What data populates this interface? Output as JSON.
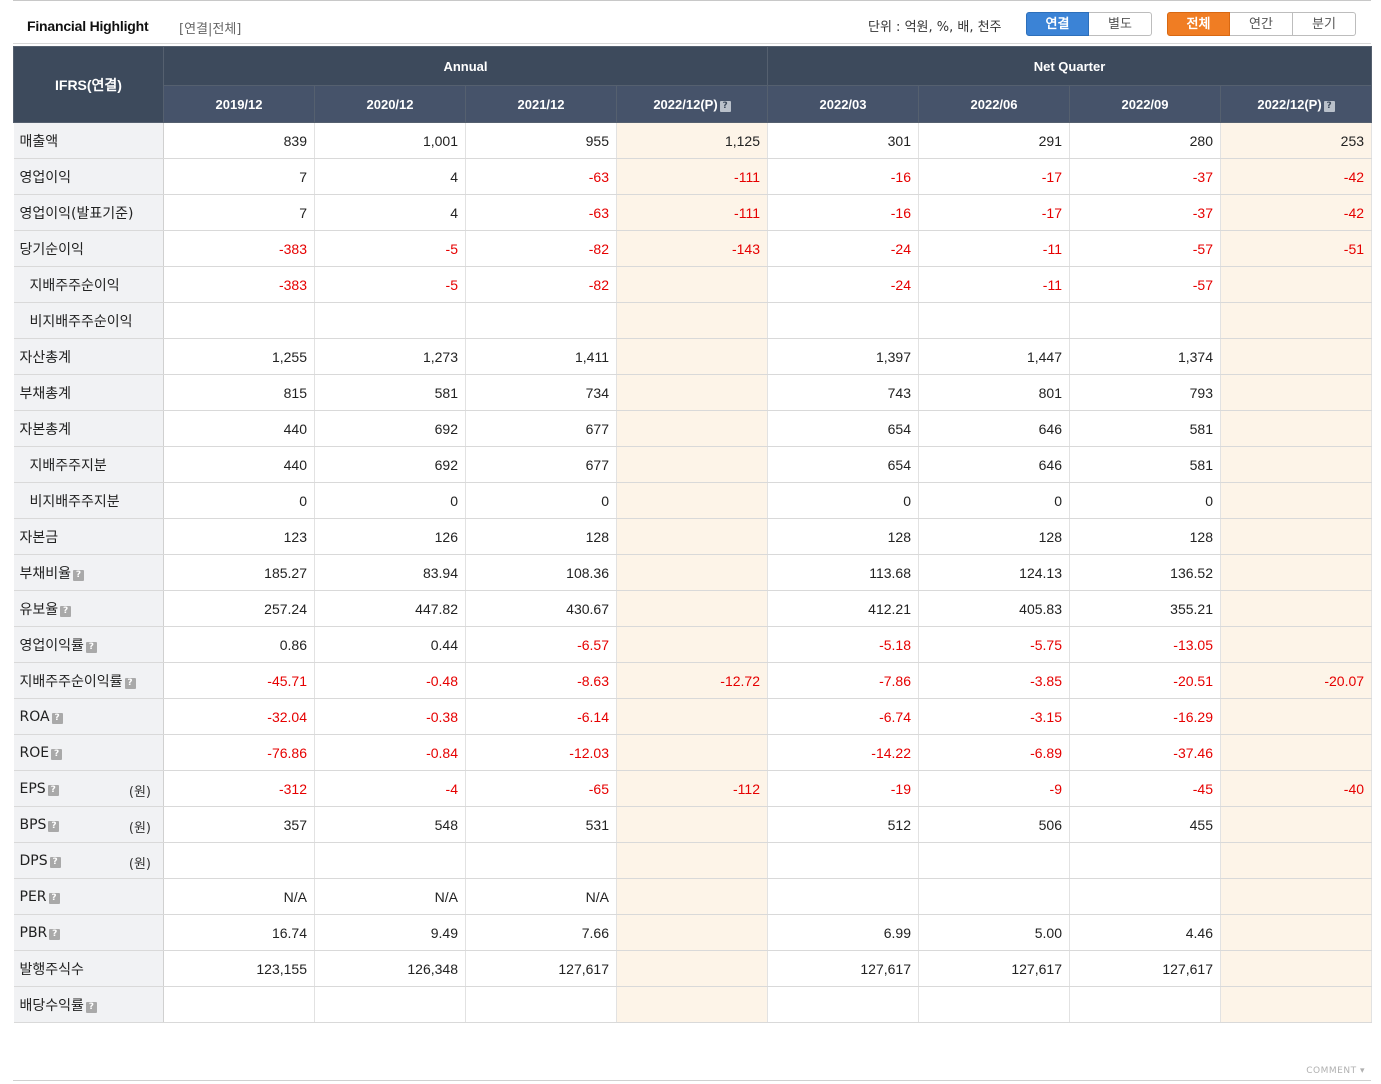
{
  "header": {
    "title": "Financial Highlight",
    "subtitle": "[연결|전체]",
    "unit_label": "단위 : 억원, %, 배, 천주",
    "basis_buttons": [
      {
        "label": "연결",
        "active": true
      },
      {
        "label": "별도",
        "active": false
      }
    ],
    "period_buttons": [
      {
        "label": "전체",
        "active": true
      },
      {
        "label": "연간",
        "active": false
      },
      {
        "label": "분기",
        "active": false
      }
    ]
  },
  "table": {
    "corner": "IFRS(연결)",
    "group_annual": "Annual",
    "group_quarter": "Net Quarter",
    "columns": [
      "2019/12",
      "2020/12",
      "2021/12",
      "2022/12(P)",
      "2022/03",
      "2022/06",
      "2022/09",
      "2022/12(P)"
    ],
    "rows": [
      {
        "label": "매출액",
        "help": false,
        "unit": "",
        "values": [
          "839",
          "1,001",
          "955",
          "1,125",
          "301",
          "291",
          "280",
          "253"
        ]
      },
      {
        "label": "영업이익",
        "help": false,
        "unit": "",
        "values": [
          "7",
          "4",
          "-63",
          "-111",
          "-16",
          "-17",
          "-37",
          "-42"
        ]
      },
      {
        "label": "영업이익(발표기준)",
        "help": false,
        "unit": "",
        "values": [
          "7",
          "4",
          "-63",
          "-111",
          "-16",
          "-17",
          "-37",
          "-42"
        ]
      },
      {
        "label": "당기순이익",
        "help": false,
        "unit": "",
        "values": [
          "-383",
          "-5",
          "-82",
          "-143",
          "-24",
          "-11",
          "-57",
          "-51"
        ]
      },
      {
        "label": "지배주주순이익",
        "help": false,
        "unit": "",
        "indent": true,
        "values": [
          "-383",
          "-5",
          "-82",
          "",
          "-24",
          "-11",
          "-57",
          ""
        ]
      },
      {
        "label": "비지배주주순이익",
        "help": false,
        "unit": "",
        "indent": true,
        "values": [
          "",
          "",
          "",
          "",
          "",
          "",
          "",
          ""
        ]
      },
      {
        "label": "자산총계",
        "help": false,
        "unit": "",
        "values": [
          "1,255",
          "1,273",
          "1,411",
          "",
          "1,397",
          "1,447",
          "1,374",
          ""
        ]
      },
      {
        "label": "부채총계",
        "help": false,
        "unit": "",
        "values": [
          "815",
          "581",
          "734",
          "",
          "743",
          "801",
          "793",
          ""
        ]
      },
      {
        "label": "자본총계",
        "help": false,
        "unit": "",
        "values": [
          "440",
          "692",
          "677",
          "",
          "654",
          "646",
          "581",
          ""
        ]
      },
      {
        "label": "지배주주지분",
        "help": false,
        "unit": "",
        "indent": true,
        "values": [
          "440",
          "692",
          "677",
          "",
          "654",
          "646",
          "581",
          ""
        ]
      },
      {
        "label": "비지배주주지분",
        "help": false,
        "unit": "",
        "indent": true,
        "values": [
          "0",
          "0",
          "0",
          "",
          "0",
          "0",
          "0",
          ""
        ]
      },
      {
        "label": "자본금",
        "help": false,
        "unit": "",
        "values": [
          "123",
          "126",
          "128",
          "",
          "128",
          "128",
          "128",
          ""
        ]
      },
      {
        "label": "부채비율",
        "help": true,
        "unit": "",
        "values": [
          "185.27",
          "83.94",
          "108.36",
          "",
          "113.68",
          "124.13",
          "136.52",
          ""
        ]
      },
      {
        "label": "유보율",
        "help": true,
        "unit": "",
        "values": [
          "257.24",
          "447.82",
          "430.67",
          "",
          "412.21",
          "405.83",
          "355.21",
          ""
        ]
      },
      {
        "label": "영업이익률",
        "help": true,
        "unit": "",
        "values": [
          "0.86",
          "0.44",
          "-6.57",
          "",
          "-5.18",
          "-5.75",
          "-13.05",
          ""
        ]
      },
      {
        "label": "지배주주순이익률",
        "help": true,
        "unit": "",
        "values": [
          "-45.71",
          "-0.48",
          "-8.63",
          "-12.72",
          "-7.86",
          "-3.85",
          "-20.51",
          "-20.07"
        ]
      },
      {
        "label": "ROA",
        "help": true,
        "unit": "",
        "values": [
          "-32.04",
          "-0.38",
          "-6.14",
          "",
          "-6.74",
          "-3.15",
          "-16.29",
          ""
        ]
      },
      {
        "label": "ROE",
        "help": true,
        "unit": "",
        "values": [
          "-76.86",
          "-0.84",
          "-12.03",
          "",
          "-14.22",
          "-6.89",
          "-37.46",
          ""
        ]
      },
      {
        "label": "EPS",
        "help": true,
        "unit": "(원)",
        "values": [
          "-312",
          "-4",
          "-65",
          "-112",
          "-19",
          "-9",
          "-45",
          "-40"
        ]
      },
      {
        "label": "BPS",
        "help": true,
        "unit": "(원)",
        "values": [
          "357",
          "548",
          "531",
          "",
          "512",
          "506",
          "455",
          ""
        ]
      },
      {
        "label": "DPS",
        "help": true,
        "unit": "(원)",
        "values": [
          "",
          "",
          "",
          "",
          "",
          "",
          "",
          ""
        ]
      },
      {
        "label": "PER",
        "help": true,
        "unit": "",
        "values": [
          "N/A",
          "N/A",
          "N/A",
          "",
          "",
          "",
          "",
          ""
        ]
      },
      {
        "label": "PBR",
        "help": true,
        "unit": "",
        "values": [
          "16.74",
          "9.49",
          "7.66",
          "",
          "6.99",
          "5.00",
          "4.46",
          ""
        ]
      },
      {
        "label": "발행주식수",
        "help": false,
        "unit": "",
        "values": [
          "123,155",
          "126,348",
          "127,617",
          "",
          "127,617",
          "127,617",
          "127,617",
          ""
        ]
      },
      {
        "label": "배당수익률",
        "help": true,
        "unit": "",
        "values": [
          "",
          "",
          "",
          "",
          "",
          "",
          "",
          ""
        ]
      }
    ]
  },
  "footer": {
    "comment_label": "COMMENT"
  },
  "icons": {
    "help": "question-mark-icon",
    "comment_arrow": "caret-down-icon"
  },
  "colors": {
    "header_bg": "#3d4a5c",
    "negative": "#e60000",
    "estimate_bg": "#fdf4e8",
    "active_blue": "#3b83d6",
    "active_orange": "#f07d23"
  }
}
